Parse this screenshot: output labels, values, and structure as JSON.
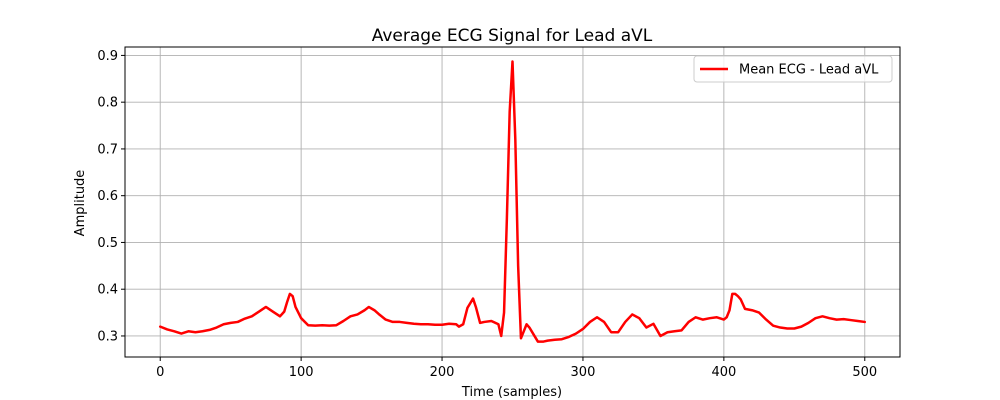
{
  "chart_data": {
    "type": "line",
    "title": "Average ECG Signal for Lead aVL",
    "xlabel": "Time (samples)",
    "ylabel": "Amplitude",
    "xlim": [
      -25,
      525
    ],
    "ylim": [
      0.255,
      0.918
    ],
    "xticks": [
      0,
      100,
      200,
      300,
      400,
      500
    ],
    "yticks": [
      0.3,
      0.4,
      0.5,
      0.6,
      0.7,
      0.8,
      0.9
    ],
    "xtick_labels": [
      "0",
      "100",
      "200",
      "300",
      "400",
      "500"
    ],
    "ytick_labels": [
      "0.3",
      "0.4",
      "0.5",
      "0.6",
      "0.7",
      "0.8",
      "0.9"
    ],
    "grid": true,
    "legend_position": "top-right",
    "series": [
      {
        "name": "Mean ECG - Lead aVL",
        "color": "#ff0000",
        "x": [
          0,
          5,
          10,
          15,
          20,
          25,
          30,
          35,
          40,
          45,
          50,
          55,
          60,
          65,
          70,
          75,
          80,
          85,
          88,
          90,
          92,
          94,
          96,
          100,
          105,
          110,
          115,
          120,
          125,
          130,
          135,
          140,
          145,
          148,
          152,
          155,
          160,
          165,
          170,
          175,
          180,
          185,
          190,
          195,
          200,
          205,
          210,
          212,
          215,
          218,
          220,
          222,
          224,
          227,
          230,
          235,
          240,
          242,
          244,
          246,
          248,
          250,
          252,
          254,
          256,
          258,
          260,
          262,
          265,
          268,
          272,
          275,
          280,
          285,
          290,
          295,
          300,
          305,
          310,
          315,
          320,
          325,
          330,
          335,
          340,
          345,
          350,
          355,
          360,
          365,
          370,
          375,
          380,
          385,
          390,
          395,
          400,
          402,
          404,
          406,
          408,
          410,
          412,
          415,
          420,
          425,
          430,
          435,
          440,
          445,
          450,
          455,
          460,
          465,
          470,
          475,
          480,
          485,
          490,
          495,
          500
        ],
        "y": [
          0.32,
          0.314,
          0.31,
          0.305,
          0.31,
          0.308,
          0.31,
          0.313,
          0.318,
          0.325,
          0.328,
          0.33,
          0.337,
          0.342,
          0.352,
          0.362,
          0.352,
          0.342,
          0.352,
          0.372,
          0.39,
          0.385,
          0.362,
          0.338,
          0.323,
          0.322,
          0.323,
          0.322,
          0.323,
          0.332,
          0.342,
          0.346,
          0.355,
          0.362,
          0.355,
          0.347,
          0.335,
          0.33,
          0.33,
          0.328,
          0.326,
          0.325,
          0.325,
          0.324,
          0.324,
          0.326,
          0.325,
          0.32,
          0.325,
          0.36,
          0.37,
          0.38,
          0.362,
          0.328,
          0.33,
          0.332,
          0.325,
          0.3,
          0.35,
          0.55,
          0.78,
          0.887,
          0.72,
          0.45,
          0.295,
          0.31,
          0.325,
          0.318,
          0.303,
          0.288,
          0.288,
          0.29,
          0.292,
          0.293,
          0.298,
          0.305,
          0.315,
          0.33,
          0.34,
          0.33,
          0.308,
          0.308,
          0.33,
          0.346,
          0.338,
          0.318,
          0.326,
          0.3,
          0.308,
          0.31,
          0.312,
          0.33,
          0.34,
          0.335,
          0.338,
          0.34,
          0.335,
          0.34,
          0.355,
          0.39,
          0.39,
          0.385,
          0.378,
          0.358,
          0.355,
          0.35,
          0.335,
          0.322,
          0.318,
          0.316,
          0.316,
          0.32,
          0.328,
          0.338,
          0.342,
          0.338,
          0.335,
          0.336,
          0.334,
          0.332,
          0.33
        ]
      }
    ]
  }
}
